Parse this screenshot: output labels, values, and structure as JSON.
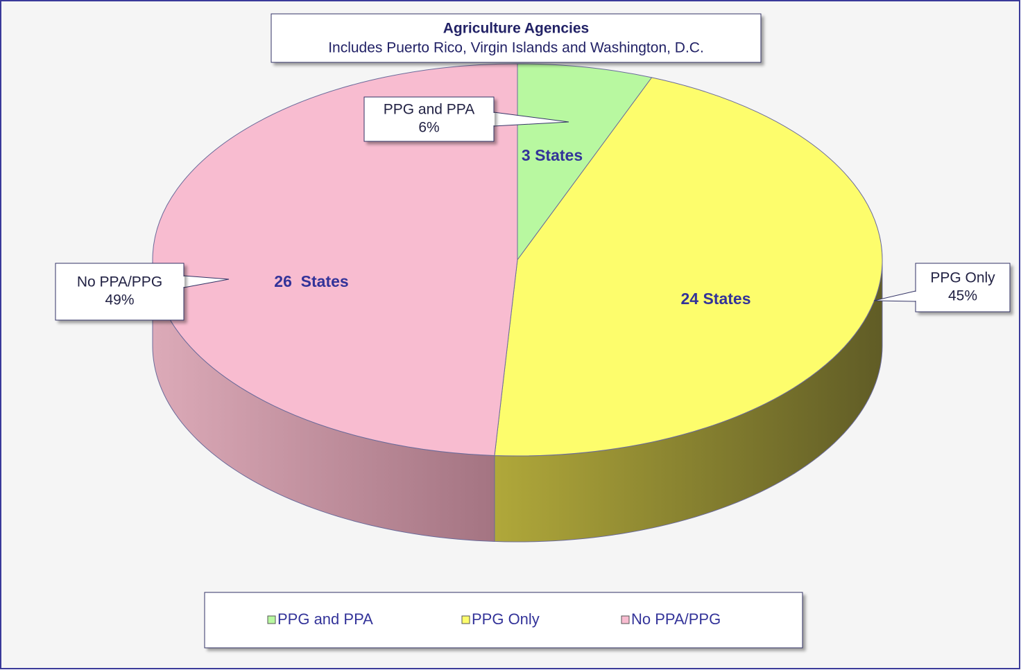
{
  "chart_data": {
    "type": "pie3d",
    "title": "Agriculture Agencies",
    "subtitle": "Includes Puerto Rico, Virgin Islands and Washington, D.C.",
    "categories": [
      "PPG and PPA",
      "PPG Only",
      "No PPA/PPG"
    ],
    "values": [
      6,
      45,
      49
    ],
    "value_labels": [
      "6%",
      "45%",
      "49%"
    ],
    "states": [
      3,
      24,
      26
    ],
    "state_labels": [
      "3 States",
      "24 States",
      "26  States"
    ],
    "colors": [
      "#b8f8a0",
      "#fdfd6c",
      "#f8bcd0"
    ],
    "legend": "bottom"
  }
}
